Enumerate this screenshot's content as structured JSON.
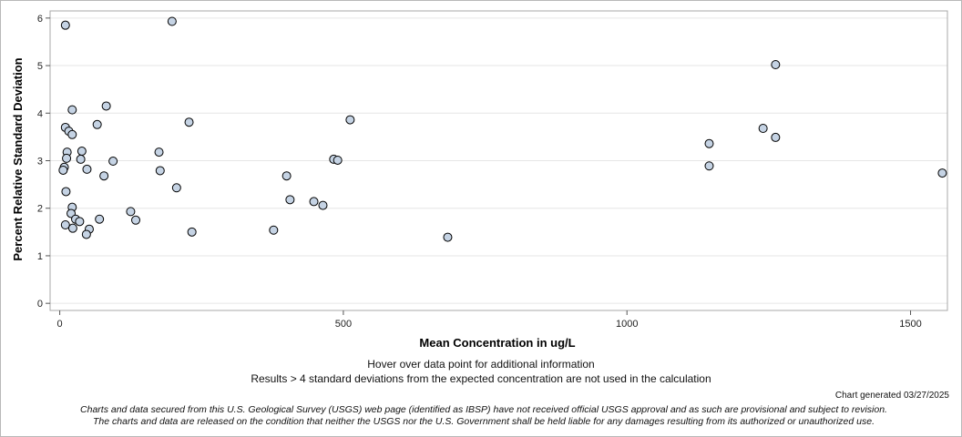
{
  "chart_data": {
    "type": "scatter",
    "xlabel": "Mean Concentration in ug/L",
    "ylabel": "Percent Relative Standard Deviation",
    "xlim": [
      -17,
      1565
    ],
    "ylim": [
      -0.15,
      6.15
    ],
    "xticks": [
      0,
      500,
      1000,
      1500
    ],
    "yticks": [
      0,
      1,
      2,
      3,
      4,
      5,
      6
    ],
    "grid": true,
    "marker_color": "#c5d3e4",
    "marker_edge": "#000000",
    "points": [
      [
        10,
        5.85
      ],
      [
        198,
        5.93
      ],
      [
        1262,
        5.02
      ],
      [
        22,
        4.07
      ],
      [
        82,
        4.15
      ],
      [
        66,
        3.76
      ],
      [
        228,
        3.81
      ],
      [
        512,
        3.86
      ],
      [
        10,
        3.7
      ],
      [
        16,
        3.62
      ],
      [
        22,
        3.55
      ],
      [
        1240,
        3.68
      ],
      [
        1145,
        3.36
      ],
      [
        1262,
        3.49
      ],
      [
        13,
        3.18
      ],
      [
        39,
        3.2
      ],
      [
        175,
        3.18
      ],
      [
        12,
        3.05
      ],
      [
        37,
        3.03
      ],
      [
        94,
        2.99
      ],
      [
        483,
        3.03
      ],
      [
        490,
        3.01
      ],
      [
        1145,
        2.89
      ],
      [
        8,
        2.86
      ],
      [
        6,
        2.8
      ],
      [
        48,
        2.82
      ],
      [
        177,
        2.79
      ],
      [
        78,
        2.68
      ],
      [
        400,
        2.68
      ],
      [
        1556,
        2.74
      ],
      [
        11,
        2.35
      ],
      [
        206,
        2.43
      ],
      [
        406,
        2.18
      ],
      [
        448,
        2.14
      ],
      [
        464,
        2.06
      ],
      [
        22,
        2.02
      ],
      [
        20,
        1.89
      ],
      [
        125,
        1.93
      ],
      [
        28,
        1.77
      ],
      [
        35,
        1.72
      ],
      [
        70,
        1.77
      ],
      [
        134,
        1.75
      ],
      [
        10,
        1.65
      ],
      [
        23,
        1.58
      ],
      [
        52,
        1.56
      ],
      [
        47,
        1.45
      ],
      [
        233,
        1.5
      ],
      [
        377,
        1.54
      ],
      [
        684,
        1.39
      ]
    ]
  },
  "hover_note": "Hover over data point for additional information",
  "results_note": "Results > 4 standard deviations from the expected concentration are not used in the calculation",
  "generated": "Chart generated 03/27/2025",
  "disclaimer_line1": "Charts and data secured from this U.S. Geological Survey (USGS) web page (identified as IBSP) have not received official USGS approval and as such are provisional and subject to revision.",
  "disclaimer_line2": "The charts and data are released on the condition that neither the USGS nor the U.S. Government shall be held liable for any damages resulting from its authorized or unauthorized use."
}
